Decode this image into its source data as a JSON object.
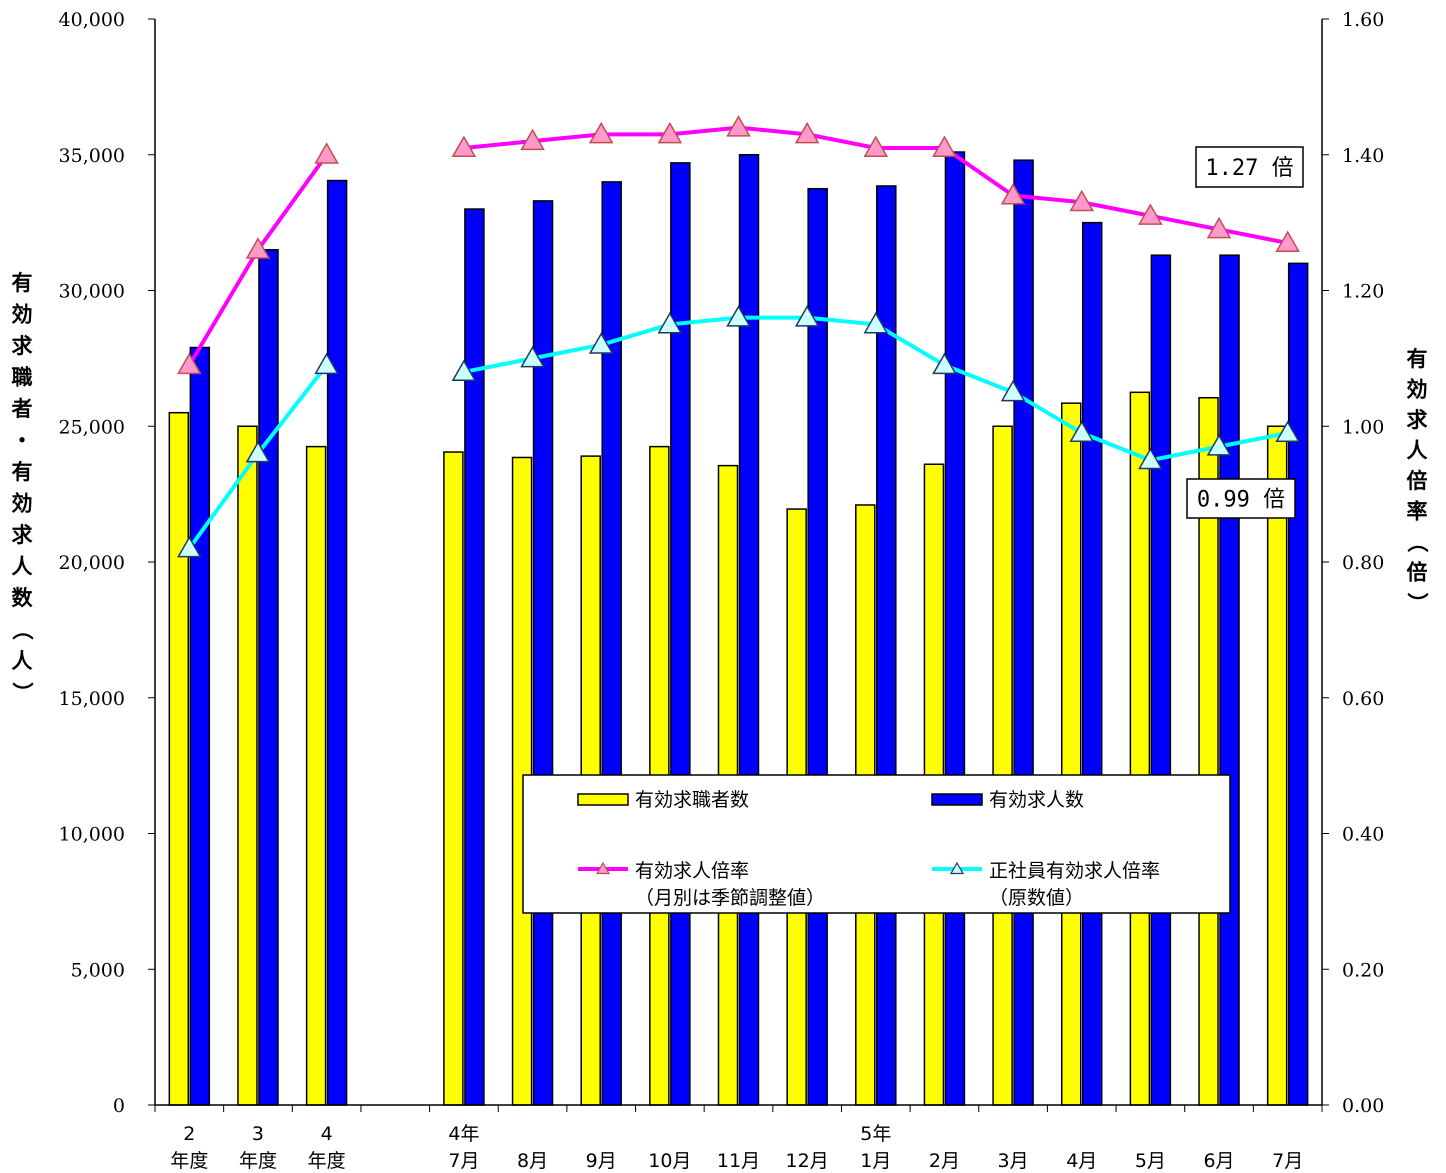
{
  "chart_data": {
    "type": "bar",
    "categories": [
      [
        "2",
        "年度"
      ],
      [
        "3",
        "年度"
      ],
      [
        "4",
        "年度"
      ],
      [
        "",
        ""
      ],
      [
        "4年",
        "7月"
      ],
      [
        "",
        "8月"
      ],
      [
        "",
        "9月"
      ],
      [
        "",
        "10月"
      ],
      [
        "",
        "11月"
      ],
      [
        "",
        "12月"
      ],
      [
        "5年",
        "1月"
      ],
      [
        "",
        "2月"
      ],
      [
        "",
        "3月"
      ],
      [
        "",
        "4月"
      ],
      [
        "",
        "5月"
      ],
      [
        "",
        "6月"
      ],
      [
        "",
        "7月"
      ]
    ],
    "y_left": {
      "label": "有効求職者・有効求人数（人）",
      "min": 0,
      "max": 40000,
      "step": 5000,
      "tick_labels": [
        "0",
        "5,000",
        "10,000",
        "15,000",
        "20,000",
        "25,000",
        "30,000",
        "35,000",
        "40,000"
      ]
    },
    "y_right": {
      "label": "有効求人倍率（倍）",
      "min": 0,
      "max": 1.6,
      "step": 0.2,
      "tick_labels": [
        "0.00",
        "0.20",
        "0.40",
        "0.60",
        "0.80",
        "1.00",
        "1.20",
        "1.40",
        "1.60"
      ]
    },
    "series": [
      {
        "name": "有効求職者数",
        "kind": "bar",
        "axis": "left",
        "color": "#FFFF00",
        "values": [
          25500,
          25000,
          24250,
          null,
          24050,
          23850,
          23900,
          24250,
          23550,
          21950,
          22100,
          23600,
          25000,
          25850,
          26250,
          26050,
          25000
        ]
      },
      {
        "name": "有効求人数",
        "kind": "bar",
        "axis": "left",
        "color": "#0000FF",
        "values": [
          27900,
          31500,
          34050,
          null,
          33000,
          33300,
          34000,
          34700,
          35000,
          33750,
          33850,
          35100,
          34800,
          32500,
          31300,
          31300,
          31000
        ]
      },
      {
        "name": "有効求人倍率",
        "note": "（月別は季節調整値）",
        "kind": "line",
        "axis": "right",
        "color": "#FF00FF",
        "marker_fill": "#FF99CC",
        "marker_stroke": "#C0504D",
        "values": [
          1.09,
          1.26,
          1.4,
          null,
          1.41,
          1.42,
          1.43,
          1.43,
          1.44,
          1.43,
          1.41,
          1.41,
          1.34,
          1.33,
          1.31,
          1.29,
          1.27
        ]
      },
      {
        "name": "正社員有効求人倍率",
        "note": "（原数値）",
        "kind": "line",
        "axis": "right",
        "color": "#00FFFF",
        "marker_fill": "#CCFFFF",
        "marker_stroke": "#1F3864",
        "values": [
          0.82,
          0.96,
          1.09,
          null,
          1.08,
          1.1,
          1.12,
          1.15,
          1.16,
          1.16,
          1.15,
          1.09,
          1.05,
          0.99,
          0.95,
          0.97,
          0.99
        ]
      }
    ],
    "callouts": [
      {
        "text": "1.27 倍",
        "series": "有効求人倍率"
      },
      {
        "text": "0.99 倍",
        "series": "正社員有効求人倍率"
      }
    ],
    "grid": false,
    "legend_position": "lower-right inside plot"
  }
}
